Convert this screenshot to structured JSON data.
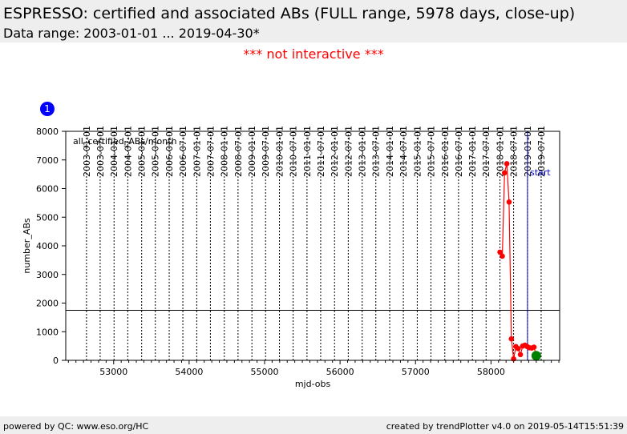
{
  "header": {
    "title": "ESPRESSO: certified and associated ABs (FULL range, 5978 days, close-up)",
    "subtitle": "Data range: 2003-01-01 ... 2019-04-30*"
  },
  "notice": "*** not interactive ***",
  "badge": "1",
  "footer": {
    "left": "powered by QC: www.eso.org/HC",
    "right": "created by trendPlotter v4.0 on 2019-05-14T15:51:39"
  },
  "chart_data": {
    "type": "line",
    "xlabel": "mjd-obs",
    "ylabel": "number_ABs",
    "xlim": [
      52365,
      58910
    ],
    "ylim": [
      0,
      8000
    ],
    "x_ticks": [
      53000,
      54000,
      55000,
      56000,
      57000,
      58000
    ],
    "y_ticks": [
      0,
      1000,
      2000,
      3000,
      4000,
      5000,
      6000,
      7000,
      8000
    ],
    "date_ticks": [
      {
        "label": "2003-01-01",
        "mjd": 52640
      },
      {
        "label": "2003-07-01",
        "mjd": 52821
      },
      {
        "label": "2004-01-01",
        "mjd": 53005
      },
      {
        "label": "2004-07-01",
        "mjd": 53187
      },
      {
        "label": "2005-01-01",
        "mjd": 53371
      },
      {
        "label": "2005-07-01",
        "mjd": 53552
      },
      {
        "label": "2006-01-01",
        "mjd": 53736
      },
      {
        "label": "2006-07-01",
        "mjd": 53917
      },
      {
        "label": "2007-01-01",
        "mjd": 54101
      },
      {
        "label": "2007-07-01",
        "mjd": 54282
      },
      {
        "label": "2008-01-01",
        "mjd": 54466
      },
      {
        "label": "2008-07-01",
        "mjd": 54648
      },
      {
        "label": "2009-01-01",
        "mjd": 54832
      },
      {
        "label": "2009-07-01",
        "mjd": 55013
      },
      {
        "label": "2010-01-01",
        "mjd": 55197
      },
      {
        "label": "2010-07-01",
        "mjd": 55378
      },
      {
        "label": "2011-01-01",
        "mjd": 55562
      },
      {
        "label": "2011-07-01",
        "mjd": 55743
      },
      {
        "label": "2012-01-01",
        "mjd": 55927
      },
      {
        "label": "2012-07-01",
        "mjd": 56109
      },
      {
        "label": "2013-01-01",
        "mjd": 56293
      },
      {
        "label": "2013-07-01",
        "mjd": 56474
      },
      {
        "label": "2014-01-01",
        "mjd": 56658
      },
      {
        "label": "2014-07-01",
        "mjd": 56839
      },
      {
        "label": "2015-01-01",
        "mjd": 57023
      },
      {
        "label": "2015-07-01",
        "mjd": 57204
      },
      {
        "label": "2016-01-01",
        "mjd": 57388
      },
      {
        "label": "2016-07-01",
        "mjd": 57570
      },
      {
        "label": "2017-01-01",
        "mjd": 57754
      },
      {
        "label": "2017-07-01",
        "mjd": 57935
      },
      {
        "label": "2018-01-01",
        "mjd": 58119
      },
      {
        "label": "2018-07-01",
        "mjd": 58300
      },
      {
        "label": "2019-01-01",
        "mjd": 58484
      },
      {
        "label": "2019-07-01",
        "mjd": 58665
      }
    ],
    "series": [
      {
        "name": "all_certified_ABs/month",
        "color": "#ff0000",
        "x": [
          58119,
          58150,
          58180,
          58210,
          58240,
          58270,
          58300,
          58330,
          58360,
          58390,
          58420,
          58450,
          58480,
          58510,
          58540,
          58570,
          58600
        ],
        "y": [
          3780,
          3640,
          6550,
          6870,
          5530,
          750,
          50,
          480,
          410,
          200,
          500,
          530,
          480,
          440,
          430,
          460,
          160
        ]
      }
    ],
    "latest_point": {
      "x": 58600,
      "y": 160,
      "color": "#008000"
    },
    "reference_line": {
      "y": 1750
    },
    "start_marker": {
      "x": 58484,
      "label": "start",
      "color": "#0000cc"
    },
    "colors": {
      "series": "#ff0000",
      "latest": "#008000",
      "start": "#0000cc",
      "badge": "#0000ff",
      "notice": "#ff0000"
    }
  }
}
